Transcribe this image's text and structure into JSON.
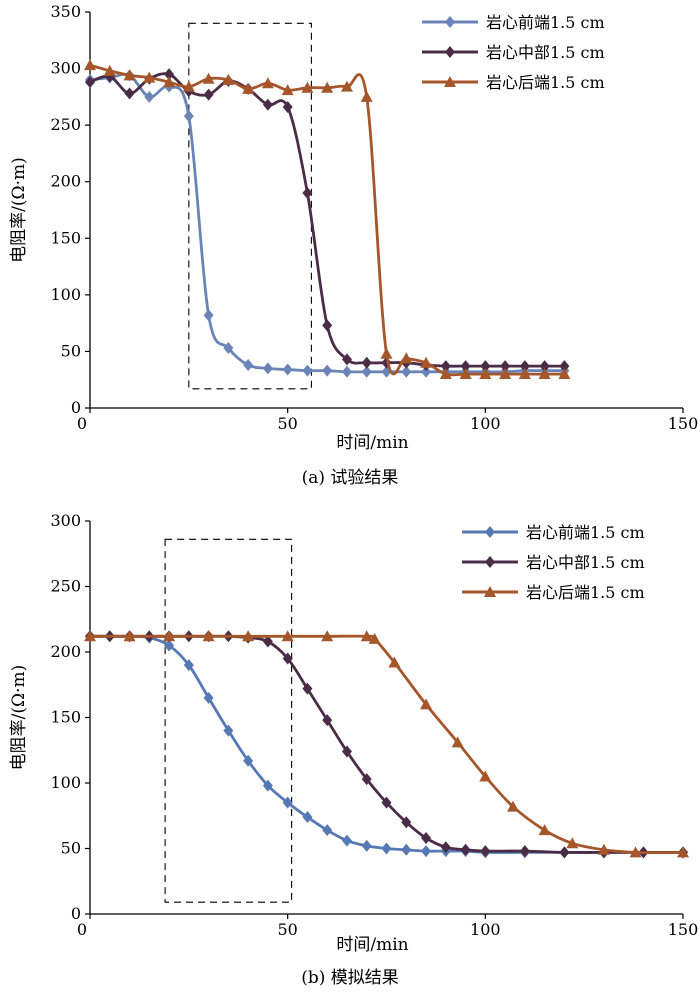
{
  "chart_data": [
    {
      "type": "line",
      "caption": "(a) 试验结果",
      "xlabel": "时间/min",
      "ylabel": "电阻率/(Ω·m)",
      "xlim": [
        0,
        150
      ],
      "ylim": [
        0,
        350
      ],
      "xticks": [
        0,
        50,
        100,
        150
      ],
      "yticks": [
        0,
        50,
        100,
        150,
        200,
        250,
        300,
        350
      ],
      "highlight_region": {
        "x": [
          25,
          56
        ],
        "y": [
          17,
          340
        ]
      },
      "series": [
        {
          "name": "岩心前端1.5 cm",
          "color": "#6b84b8",
          "marker": "diamond",
          "x": [
            0,
            5,
            10,
            15,
            20,
            25,
            30,
            35,
            40,
            45,
            50,
            55,
            60,
            65,
            70,
            75,
            80,
            85,
            90,
            95,
            100,
            105,
            110,
            115,
            120
          ],
          "y": [
            290,
            292,
            294,
            275,
            284,
            258,
            82,
            53,
            38,
            35,
            34,
            33,
            33,
            32,
            32,
            32,
            32,
            32,
            32,
            32,
            32,
            32,
            33,
            33,
            33
          ]
        },
        {
          "name": "岩心中部1.5 cm",
          "color": "#4a2c46",
          "marker": "diamond",
          "x": [
            0,
            5,
            10,
            15,
            20,
            25,
            30,
            35,
            40,
            45,
            50,
            55,
            60,
            65,
            70,
            75,
            80,
            85,
            90,
            95,
            100,
            105,
            110,
            115,
            120
          ],
          "y": [
            288,
            293,
            278,
            291,
            295,
            280,
            277,
            289,
            282,
            268,
            266,
            190,
            73,
            43,
            40,
            40,
            40,
            38,
            37,
            37,
            37,
            37,
            37,
            37,
            37
          ]
        },
        {
          "name": "岩心后端1.5 cm",
          "color": "#a5562a",
          "marker": "triangle",
          "x": [
            0,
            5,
            10,
            15,
            20,
            25,
            30,
            35,
            40,
            45,
            50,
            55,
            60,
            65,
            70,
            75,
            80,
            85,
            90,
            95,
            100,
            105,
            110,
            115,
            120
          ],
          "y": [
            303,
            298,
            294,
            292,
            288,
            284,
            291,
            290,
            282,
            287,
            281,
            283,
            283,
            284,
            275,
            48,
            44,
            40,
            30,
            30,
            30,
            30,
            30,
            30,
            30
          ]
        }
      ]
    },
    {
      "type": "line",
      "caption": "(b) 模拟结果",
      "xlabel": "时间/min",
      "ylabel": "电阻率/(Ω·m)",
      "xlim": [
        0,
        150
      ],
      "ylim": [
        0,
        300
      ],
      "xticks": [
        0,
        50,
        100,
        150
      ],
      "yticks": [
        0,
        50,
        100,
        150,
        200,
        250,
        300
      ],
      "highlight_region": {
        "x": [
          19,
          51
        ],
        "y": [
          9,
          286
        ]
      },
      "series": [
        {
          "name": "岩心前端1.5 cm",
          "color": "#5679b5",
          "marker": "diamond",
          "x": [
            0,
            5,
            10,
            15,
            20,
            25,
            30,
            35,
            40,
            45,
            50,
            55,
            60,
            65,
            70,
            75,
            80,
            85,
            90,
            95,
            100,
            110,
            120,
            130,
            140,
            150
          ],
          "y": [
            212,
            212,
            212,
            211,
            205,
            190,
            165,
            140,
            117,
            98,
            85,
            74,
            64,
            56,
            52,
            50,
            49,
            48,
            48,
            48,
            47,
            47,
            47,
            47,
            47,
            47
          ]
        },
        {
          "name": "岩心中部1.5 cm",
          "color": "#4a2c46",
          "marker": "diamond",
          "x": [
            0,
            5,
            10,
            15,
            20,
            25,
            30,
            35,
            40,
            45,
            50,
            55,
            60,
            65,
            70,
            75,
            80,
            85,
            90,
            95,
            100,
            110,
            120,
            130,
            140,
            150
          ],
          "y": [
            212,
            212,
            212,
            212,
            212,
            212,
            212,
            212,
            211,
            208,
            195,
            172,
            148,
            124,
            103,
            85,
            70,
            58,
            51,
            49,
            48,
            48,
            47,
            47,
            47,
            47
          ]
        },
        {
          "name": "岩心后端1.5 cm",
          "color": "#a5562a",
          "marker": "triangle",
          "x": [
            0,
            10,
            20,
            30,
            40,
            50,
            60,
            70,
            72,
            77,
            85,
            93,
            100,
            107,
            115,
            122,
            130,
            138,
            150
          ],
          "y": [
            212,
            212,
            212,
            212,
            212,
            212,
            212,
            212,
            210,
            192,
            160,
            131,
            105,
            82,
            64,
            54,
            49,
            47,
            47
          ]
        }
      ]
    }
  ]
}
